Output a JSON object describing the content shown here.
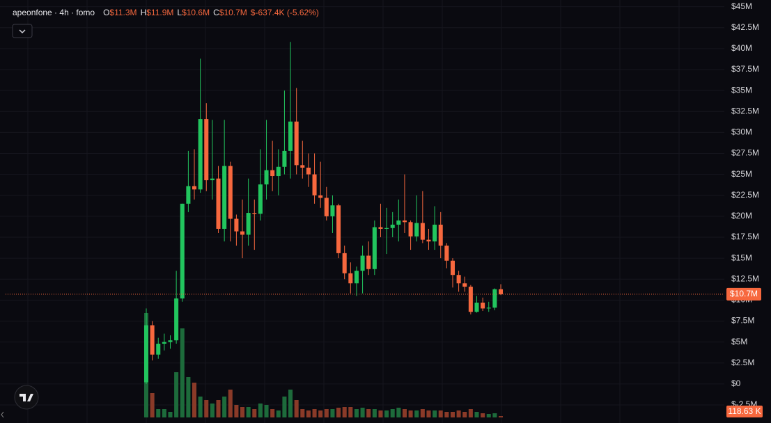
{
  "chart_data": {
    "type": "candlestick",
    "title": "apeonfone · 4h · fomo",
    "ohlc_header": [
      {
        "key": "O",
        "text": "$11.3M"
      },
      {
        "key": "H",
        "text": "$11.9M"
      },
      {
        "key": "L",
        "text": "$10.6M"
      },
      {
        "key": "C",
        "text": "$10.7M"
      }
    ],
    "change_text": "$-637.4K (-5.62%)",
    "up_color": "#22c55e",
    "down_color": "#f7683e",
    "up_volume_color": "#1d6b3b",
    "down_volume_color": "#8a3a28",
    "open": [
      0.2,
      7.0,
      3.5,
      4.8,
      5.0,
      5.2,
      10.2,
      21.5,
      23.6,
      23.2,
      31.6,
      24.3,
      24.5,
      18.5,
      26.0,
      19.7,
      18.2,
      17.8,
      20.4,
      20.3,
      23.8,
      25.5,
      24.8,
      25.9,
      27.8,
      31.3,
      26.1,
      25.8,
      25.0,
      22.5,
      22.2,
      20.0,
      21.3,
      15.6,
      13.2,
      12.0,
      13.5,
      15.3,
      13.7,
      18.7,
      18.5,
      18.6,
      19.0,
      19.5,
      19.3,
      17.6,
      19.2,
      17.2,
      17.0,
      19.0,
      16.5,
      14.7,
      13.0,
      12.0,
      11.6,
      8.6,
      9.7,
      9.0,
      9.1,
      11.3
    ],
    "high": [
      9.0,
      7.5,
      5.5,
      6.0,
      5.8,
      13.5,
      21.5,
      27.8,
      28.0,
      38.8,
      33.5,
      31.5,
      26.0,
      31.5,
      26.5,
      20.2,
      22.0,
      24.5,
      22.0,
      28.0,
      31.5,
      29.0,
      28.0,
      35.0,
      40.8,
      35.3,
      29.0,
      27.5,
      27.5,
      26.5,
      23.5,
      22.5,
      21.5,
      16.5,
      14.5,
      14.0,
      16.5,
      17.0,
      19.5,
      21.5,
      21.0,
      20.5,
      22.0,
      25.0,
      19.5,
      22.5,
      23.0,
      18.5,
      21.2,
      20.5,
      16.8,
      15.0,
      13.5,
      12.8,
      11.8,
      10.5,
      10.3,
      9.8,
      11.4,
      11.9
    ],
    "low": [
      0.0,
      2.8,
      3.0,
      4.0,
      4.2,
      4.8,
      9.8,
      20.5,
      22.0,
      22.8,
      23.0,
      22.0,
      18.0,
      17.0,
      17.0,
      16.5,
      15.0,
      16.5,
      16.0,
      19.5,
      22.0,
      23.0,
      22.5,
      25.0,
      24.5,
      25.0,
      24.5,
      23.5,
      21.5,
      21.0,
      19.5,
      18.0,
      15.0,
      12.5,
      10.8,
      10.5,
      10.8,
      13.0,
      13.0,
      17.5,
      15.5,
      17.5,
      17.0,
      18.0,
      16.0,
      17.0,
      16.8,
      16.0,
      16.0,
      15.0,
      13.8,
      11.5,
      11.0,
      11.0,
      8.3,
      8.5,
      8.7,
      8.6,
      8.8,
      10.6
    ],
    "close": [
      7.0,
      3.5,
      4.8,
      5.0,
      5.2,
      10.2,
      21.5,
      23.6,
      23.2,
      31.6,
      24.3,
      24.5,
      18.5,
      26.0,
      19.7,
      18.2,
      17.8,
      20.4,
      20.3,
      23.8,
      25.5,
      24.8,
      25.9,
      27.8,
      31.3,
      26.1,
      25.8,
      25.0,
      22.5,
      22.2,
      20.0,
      21.3,
      15.6,
      13.2,
      12.0,
      13.5,
      15.3,
      13.7,
      18.7,
      18.5,
      18.6,
      19.0,
      19.5,
      19.3,
      17.6,
      19.2,
      17.2,
      17.0,
      19.0,
      16.5,
      14.7,
      13.0,
      12.0,
      11.6,
      8.6,
      9.7,
      9.0,
      9.1,
      11.3,
      10.7
    ],
    "volume": [
      9000,
      2100,
      720,
      720,
      480,
      3900,
      7680,
      3480,
      3000,
      1800,
      1500,
      1200,
      1500,
      1800,
      2400,
      1080,
      900,
      900,
      720,
      1200,
      1080,
      720,
      600,
      1800,
      2400,
      1500,
      720,
      600,
      720,
      600,
      720,
      720,
      840,
      900,
      900,
      720,
      840,
      720,
      720,
      600,
      600,
      720,
      840,
      720,
      600,
      600,
      720,
      600,
      600,
      600,
      480,
      480,
      600,
      480,
      720,
      480,
      360,
      300,
      360,
      118.63
    ],
    "last_price": {
      "value": 10.7,
      "label": "$10.7M"
    },
    "last_volume_label": "118.63 K",
    "ylim": [
      -3.0,
      45.8
    ],
    "yticks": [
      {
        "value": 45,
        "label": "$45M"
      },
      {
        "value": 42.5,
        "label": "$42.5M"
      },
      {
        "value": 40,
        "label": "$40M"
      },
      {
        "value": 37.5,
        "label": "$37.5M"
      },
      {
        "value": 35,
        "label": "$35M"
      },
      {
        "value": 32.5,
        "label": "$32.5M"
      },
      {
        "value": 30,
        "label": "$30M"
      },
      {
        "value": 27.5,
        "label": "$27.5M"
      },
      {
        "value": 25,
        "label": "$25M"
      },
      {
        "value": 22.5,
        "label": "$22.5M"
      },
      {
        "value": 20,
        "label": "$20M"
      },
      {
        "value": 17.5,
        "label": "$17.5M"
      },
      {
        "value": 15,
        "label": "$15M"
      },
      {
        "value": 12.5,
        "label": "$12.5M"
      },
      {
        "value": 10,
        "label": "$10M"
      },
      {
        "value": 7.5,
        "label": "$7.5M"
      },
      {
        "value": 5,
        "label": "$5M"
      },
      {
        "value": 2.5,
        "label": "$2.5M"
      },
      {
        "value": 0,
        "label": "$0"
      },
      {
        "value": -2.5,
        "label": "$-2.5M"
      }
    ],
    "grid": true
  }
}
